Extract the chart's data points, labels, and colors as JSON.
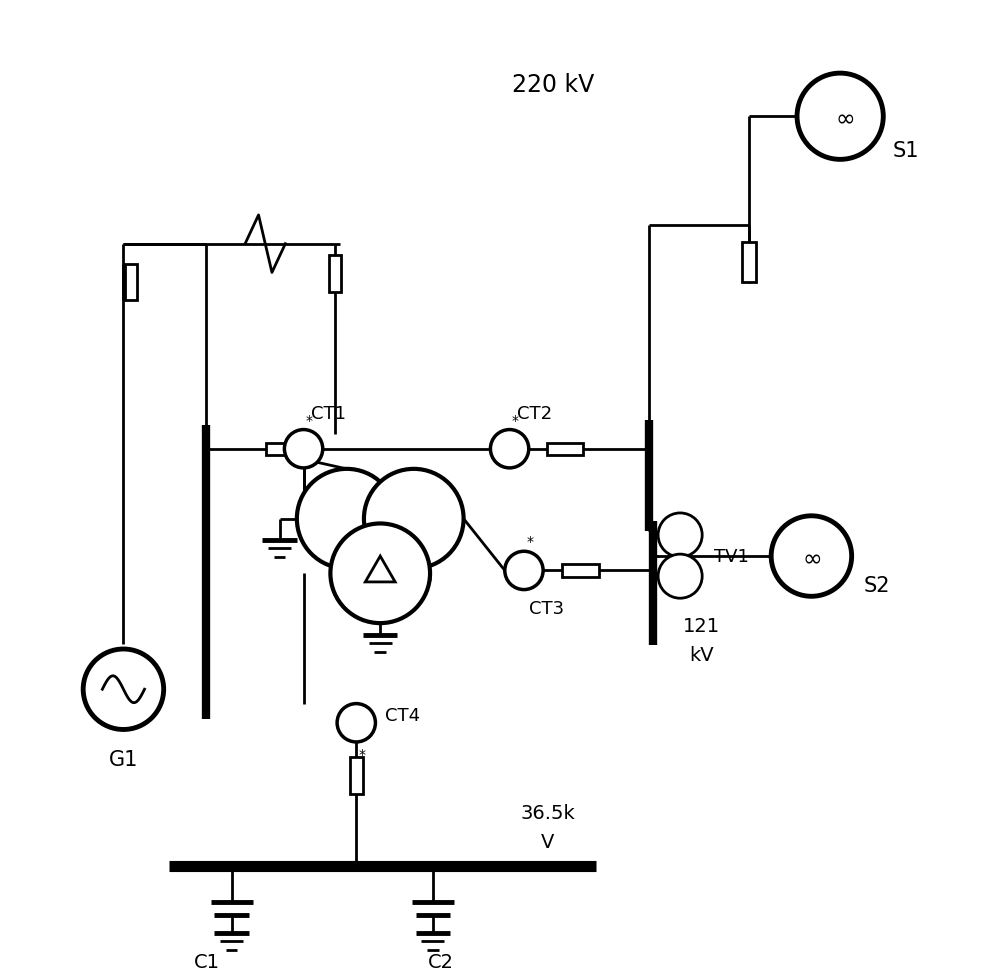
{
  "bg_color": "#ffffff",
  "lc": "#000000",
  "lw": 2.0,
  "tlw": 6.0,
  "figsize": [
    10.0,
    9.78
  ],
  "dpi": 100,
  "xlim": [
    0,
    10
  ],
  "ylim": [
    0,
    10
  ],
  "220kV_label": "220 kV",
  "36kV_label_1": "36.5k",
  "36kV_label_2": "V",
  "121kV_label_1": "121",
  "121kV_label_2": "kV",
  "G1_label": "G1",
  "S1_label": "S1",
  "S2_label": "S2",
  "TV1_label": "TV1",
  "CT1_label": "CT1",
  "CT2_label": "CT2",
  "CT3_label": "CT3",
  "CT4_label": "CT4",
  "C1_label": "C1",
  "C2_label": "C2"
}
